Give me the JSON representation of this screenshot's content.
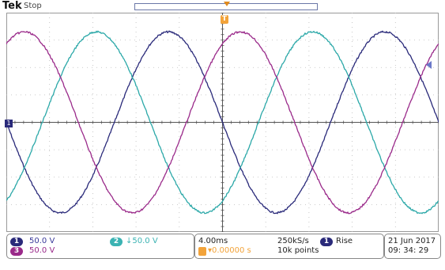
{
  "header": {
    "brand": "Tek",
    "state": "Stop"
  },
  "trigger": {
    "position_label": "T",
    "channel_marker": "1"
  },
  "channels": [
    {
      "id": "1",
      "scale": "50.0 V",
      "color": "#2a2a7a",
      "text_color": "#3a3a9a"
    },
    {
      "id": "2",
      "scale": "↓50.0 V",
      "color": "#3bb3b3",
      "text_color": "#3bb3b3"
    },
    {
      "id": "3",
      "scale": "50.0 V",
      "color": "#9a2a8a",
      "text_color": "#9a2a8a"
    }
  ],
  "timebase": {
    "time_per_div": "4.00ms",
    "sample_rate": "250kS/s",
    "position": "▾0.00000 s",
    "record_length": "10k points"
  },
  "trigger_info": {
    "source": "1",
    "slope": "Rise"
  },
  "datetime": {
    "date": "21 Jun   2017",
    "time": "09: 34: 29"
  },
  "waveforms": [
    {
      "name": "CH1",
      "color": "#2a2a7a",
      "period_divs": 5,
      "phase_deg": 180,
      "amplitude_divs": 3.3
    },
    {
      "name": "CH2",
      "color": "#2ba8a8",
      "period_divs": 5,
      "phase_deg": -60,
      "amplitude_divs": 3.3
    },
    {
      "name": "CH3",
      "color": "#9a2a8a",
      "period_divs": 5,
      "phase_deg": 60,
      "amplitude_divs": 3.3
    }
  ]
}
